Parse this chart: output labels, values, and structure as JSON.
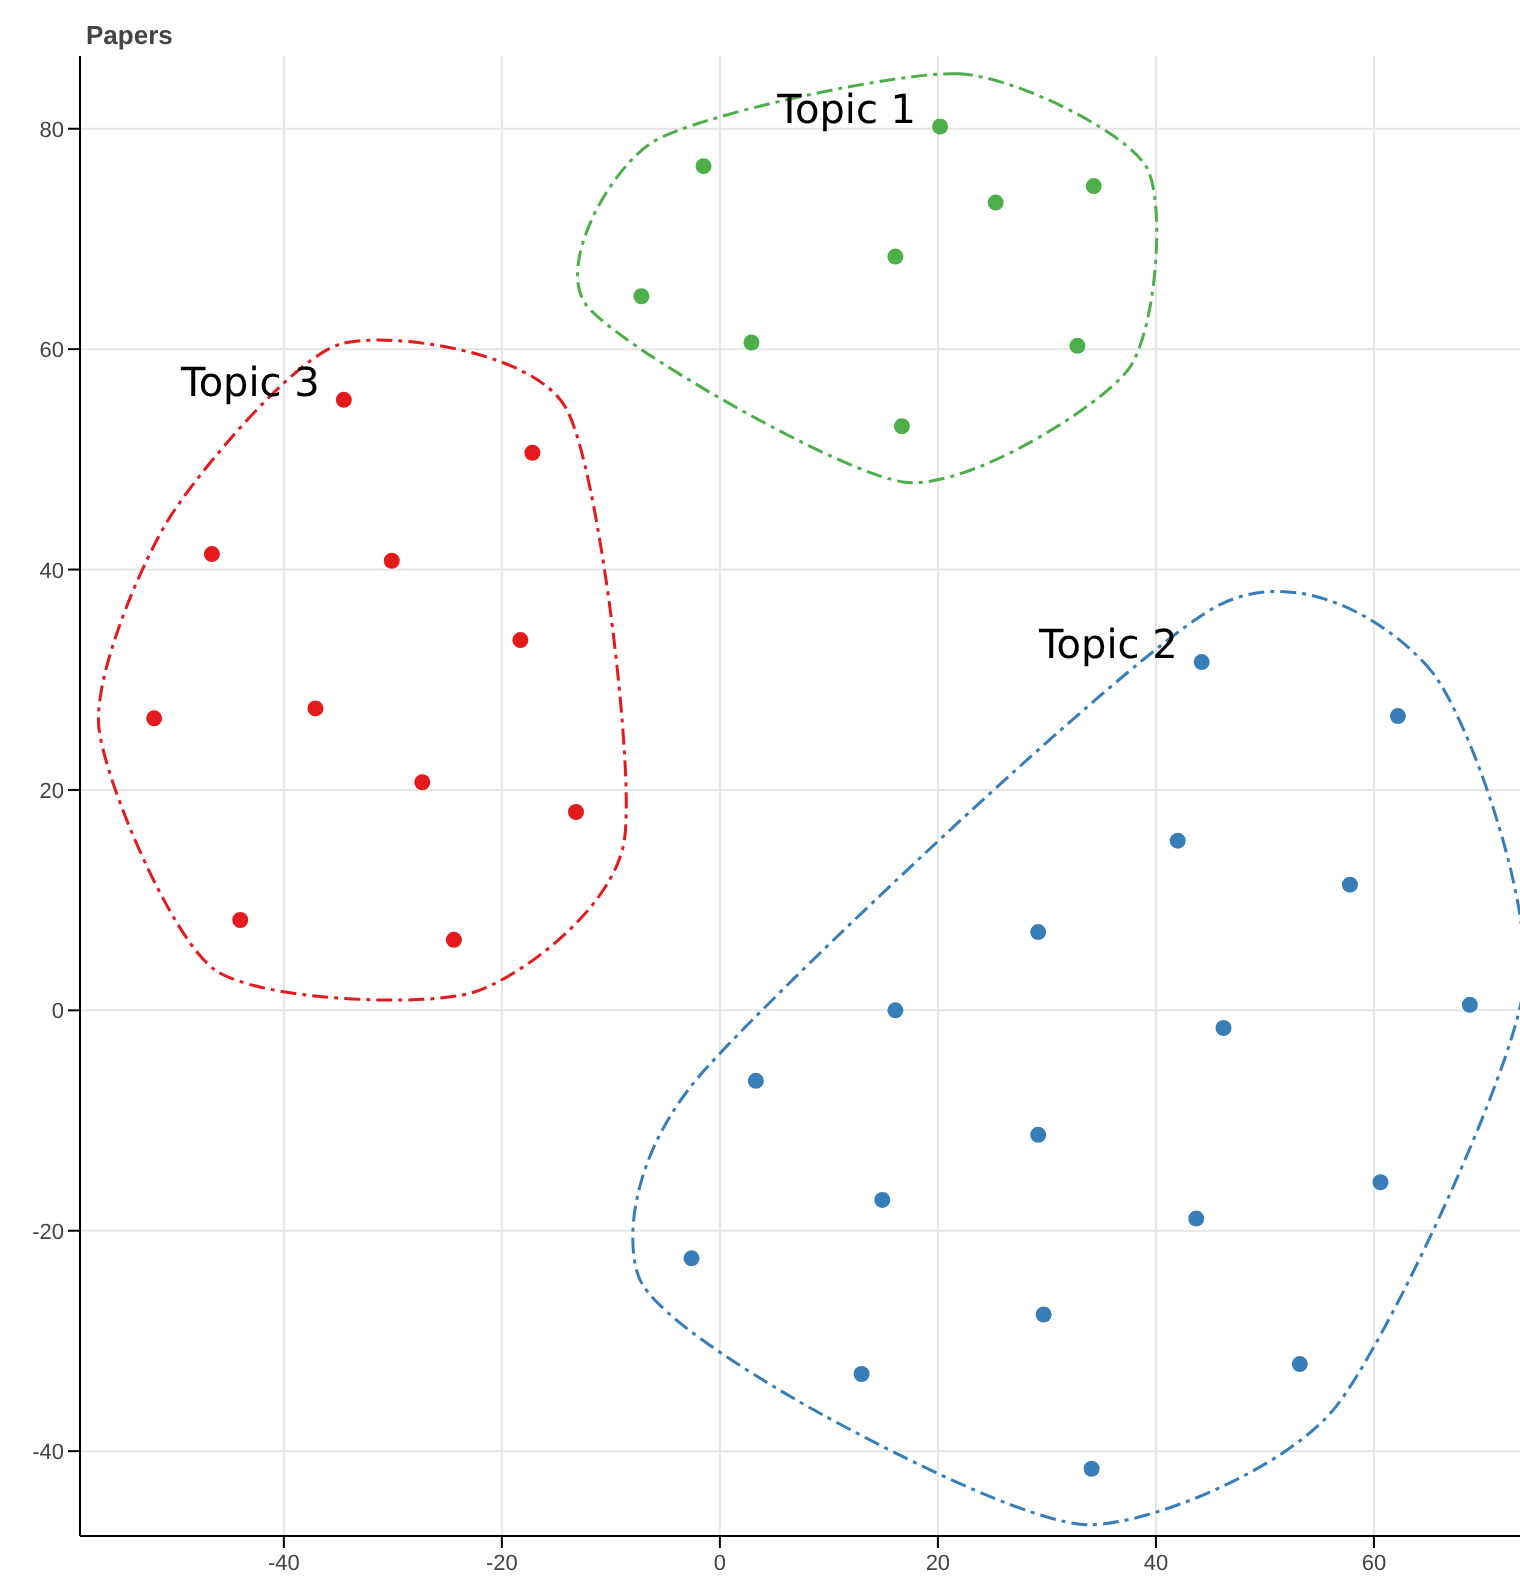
{
  "chart_data": {
    "type": "scatter",
    "title": "Papers",
    "xlim": [
      -58.7,
      73.4
    ],
    "ylim": [
      -47.7,
      86.6
    ],
    "xticks": [
      -40,
      -20,
      0,
      20,
      40,
      60
    ],
    "yticks": [
      -40,
      -20,
      0,
      20,
      40,
      60,
      80
    ],
    "grid": true,
    "legend": false,
    "marker": "circle",
    "series": [
      {
        "name": "Topic 1",
        "color": "#4daf4a",
        "x": [
          -1.5,
          20.2,
          25.3,
          34.3,
          16.1,
          -7.2,
          2.9,
          32.8,
          16.7
        ],
        "values": [
          76.6,
          80.2,
          73.3,
          74.8,
          68.4,
          64.8,
          60.6,
          60.3,
          53.0
        ]
      },
      {
        "name": "Topic 2",
        "color": "#377eb8",
        "x": [
          44.2,
          62.2,
          42.0,
          57.8,
          29.2,
          16.1,
          46.2,
          68.8,
          3.3,
          29.2,
          14.9,
          43.7,
          60.6,
          -2.6,
          29.7,
          13.0,
          53.2,
          34.1
        ],
        "values": [
          31.6,
          26.7,
          15.4,
          11.4,
          7.1,
          0,
          -1.6,
          0.5,
          -6.4,
          -11.3,
          -17.2,
          -18.9,
          -15.6,
          -22.5,
          -27.6,
          -33.0,
          -32.1,
          -41.6
        ]
      },
      {
        "name": "Topic 3",
        "color": "#e41a1c",
        "x": [
          -34.5,
          -17.2,
          -46.6,
          -30.1,
          -18.3,
          -51.9,
          -37.1,
          -27.3,
          -13.2,
          -44.0,
          -24.4
        ],
        "values": [
          55.4,
          50.6,
          41.4,
          40.8,
          33.6,
          26.5,
          27.4,
          20.7,
          18.0,
          8.2,
          6.4
        ]
      }
    ]
  }
}
